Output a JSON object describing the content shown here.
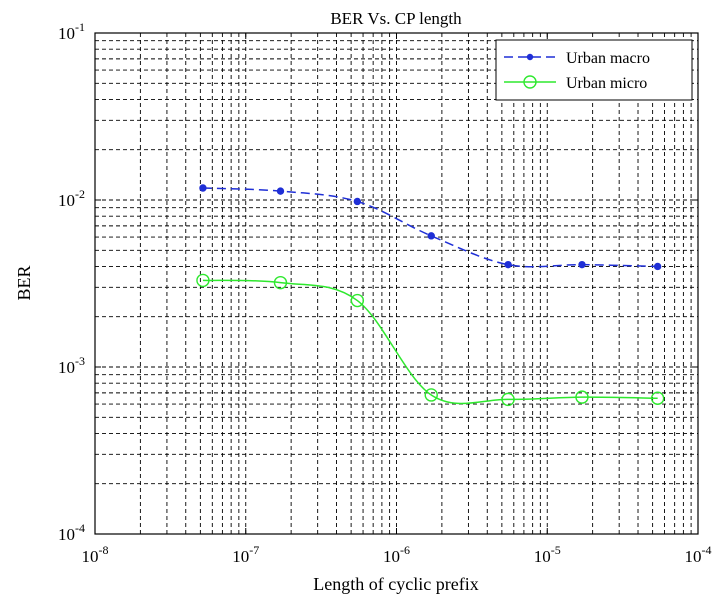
{
  "chart_data": {
    "type": "line",
    "title": "BER Vs. CP length",
    "xlabel": "Length of cyclic prefix",
    "ylabel": "BER",
    "xscale": "log",
    "yscale": "log",
    "xlim": [
      1e-08,
      0.0001
    ],
    "ylim": [
      0.0001,
      0.1
    ],
    "grid": true,
    "legend_position": "top-right",
    "x_ticks": [
      {
        "base": "10",
        "exp": "-8"
      },
      {
        "base": "10",
        "exp": "-7"
      },
      {
        "base": "10",
        "exp": "-6"
      },
      {
        "base": "10",
        "exp": "-5"
      },
      {
        "base": "10",
        "exp": "-4"
      }
    ],
    "y_ticks": [
      {
        "base": "10",
        "exp": "-4"
      },
      {
        "base": "10",
        "exp": "-3"
      },
      {
        "base": "10",
        "exp": "-2"
      },
      {
        "base": "10",
        "exp": "-1"
      }
    ],
    "series": [
      {
        "name": "Urban macro",
        "color": "#1f2fd6",
        "line_style": "dashed",
        "marker": "filled-dot",
        "x": [
          5.2e-08,
          1.7e-07,
          5.5e-07,
          1.7e-06,
          5.5e-06,
          1.7e-05,
          5.4e-05
        ],
        "y": [
          0.0118,
          0.0113,
          0.0098,
          0.0061,
          0.0041,
          0.0041,
          0.004
        ]
      },
      {
        "name": "Urban micro",
        "color": "#2ee82e",
        "line_style": "solid",
        "marker": "open-circle",
        "x": [
          5.2e-08,
          1.7e-07,
          5.5e-07,
          1.7e-06,
          5.5e-06,
          1.7e-05,
          5.4e-05
        ],
        "y": [
          0.0033,
          0.0032,
          0.0025,
          0.00068,
          0.00064,
          0.00066,
          0.00065
        ]
      }
    ]
  }
}
